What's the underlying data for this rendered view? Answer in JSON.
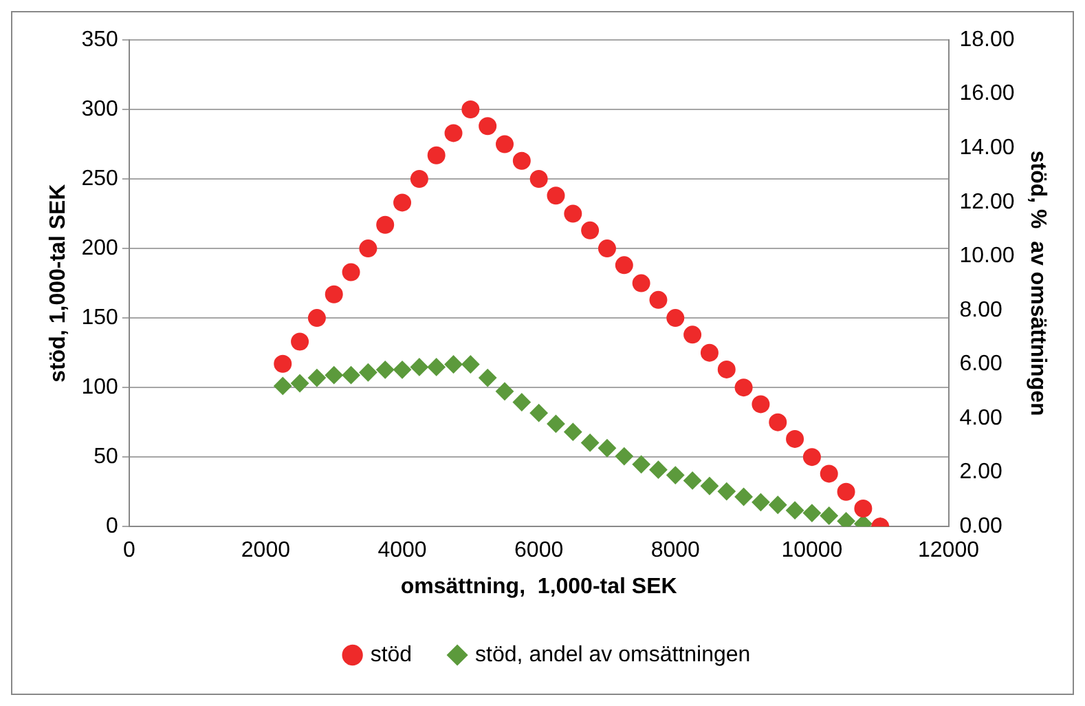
{
  "chart_data": {
    "type": "scatter",
    "xlabel": "omsättning,  1,000-tal SEK",
    "ylabel": "stöd, 1,000-tal SEK",
    "y2label": "stöd, %  av omsättningen",
    "xlim": [
      0,
      12000
    ],
    "xticks": [
      0,
      2000,
      4000,
      6000,
      8000,
      10000,
      12000
    ],
    "ylim": [
      0,
      350
    ],
    "yticks": [
      0,
      50,
      100,
      150,
      200,
      250,
      300,
      350
    ],
    "y2lim": [
      0,
      18
    ],
    "y2ticks": [
      {
        "value": 0,
        "label": "0.00"
      },
      {
        "value": 2,
        "label": "2.00"
      },
      {
        "value": 4,
        "label": "4.00"
      },
      {
        "value": 6,
        "label": "6.00"
      },
      {
        "value": 8,
        "label": "8.00"
      },
      {
        "value": 10,
        "label": "10.00"
      },
      {
        "value": 12,
        "label": "12.00"
      },
      {
        "value": 14,
        "label": "14.00"
      },
      {
        "value": 16,
        "label": "16.00"
      },
      {
        "value": 18,
        "label": "18.00"
      }
    ],
    "x": [
      2250,
      2500,
      2750,
      3000,
      3250,
      3500,
      3750,
      4000,
      4250,
      4500,
      4750,
      5000,
      5250,
      5500,
      5750,
      6000,
      6250,
      6500,
      6750,
      7000,
      7250,
      7500,
      7750,
      8000,
      8250,
      8500,
      8750,
      9000,
      9250,
      9500,
      9750,
      10000,
      10250,
      10500,
      10750,
      11000
    ],
    "grid": "y",
    "legend": "bottom",
    "series": [
      {
        "name": "stöd",
        "color": "#ee2a2a",
        "marker": "circle",
        "values": [
          117,
          133,
          150,
          167,
          183,
          200,
          217,
          233,
          250,
          267,
          283,
          300,
          288,
          275,
          263,
          250,
          238,
          225,
          213,
          200,
          188,
          175,
          163,
          150,
          138,
          125,
          113,
          100,
          88,
          75,
          63,
          50,
          38,
          25,
          13,
          0
        ]
      },
      {
        "name": "stöd, andel av omsättningen",
        "color": "#5c9a3c",
        "marker": "diamond",
        "axis": "y2",
        "values": [
          5.2,
          5.3,
          5.5,
          5.6,
          5.6,
          5.7,
          5.8,
          5.8,
          5.9,
          5.9,
          6.0,
          6.0,
          5.5,
          5.0,
          4.6,
          4.2,
          3.8,
          3.5,
          3.1,
          2.9,
          2.6,
          2.3,
          2.1,
          1.9,
          1.7,
          1.5,
          1.3,
          1.1,
          0.9,
          0.8,
          0.6,
          0.5,
          0.4,
          0.2,
          0.1,
          0
        ]
      }
    ]
  }
}
